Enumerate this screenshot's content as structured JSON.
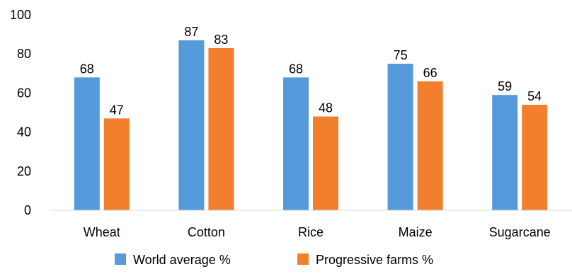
{
  "chart_data": {
    "type": "bar",
    "title": "",
    "xlabel": "",
    "ylabel": "",
    "ylim": [
      0,
      100
    ],
    "yticks": [
      0,
      20,
      40,
      60,
      80,
      100
    ],
    "categories": [
      "Wheat",
      "Cotton",
      "Rice",
      "Maize",
      "Sugarcane"
    ],
    "series": [
      {
        "name": "World average %",
        "color": "#559BDB",
        "values": [
          68,
          87,
          68,
          75,
          59
        ]
      },
      {
        "name": "Progressive farms %",
        "color": "#F27F2D",
        "values": [
          47,
          83,
          48,
          66,
          54
        ]
      }
    ],
    "grid": false,
    "data_labels": true,
    "legend_position": "bottom"
  }
}
